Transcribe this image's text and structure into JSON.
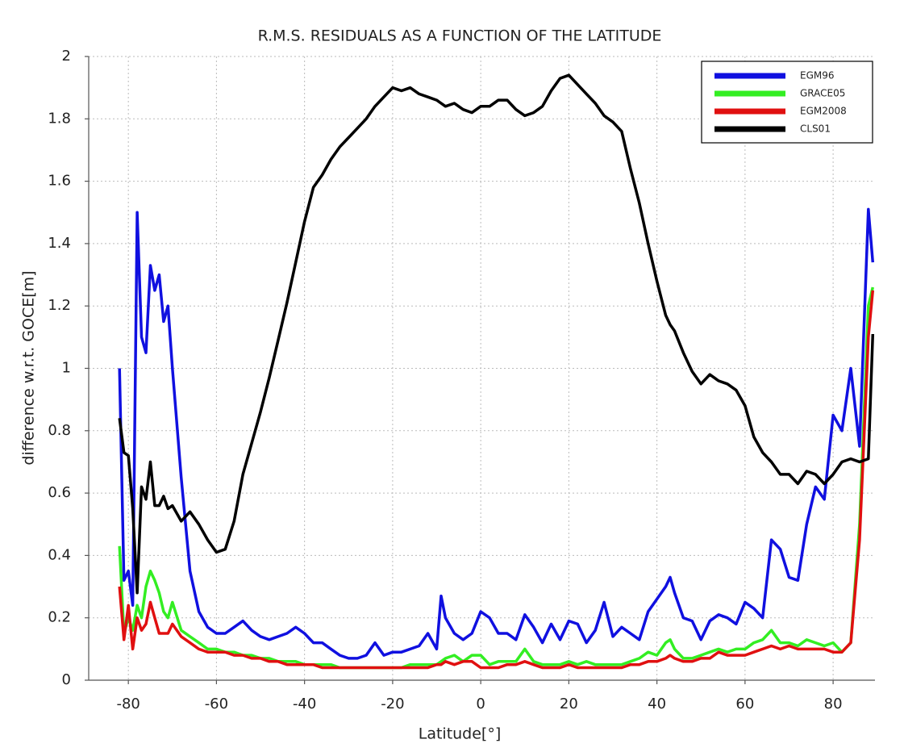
{
  "chart_data": {
    "type": "line",
    "title": "R.M.S. RESIDUALS AS A FUNCTION OF THE LATITUDE",
    "x_label": "Latitude[°]",
    "y_label": "difference w.r.t. GOCE[m]",
    "xlim": [
      -89,
      89.5
    ],
    "ylim": [
      0,
      2
    ],
    "xticks": [
      -80,
      -60,
      -40,
      -20,
      0,
      20,
      40,
      60,
      80
    ],
    "yticks": [
      0,
      0.2,
      0.4,
      0.6,
      0.8,
      1,
      1.2,
      1.4,
      1.6,
      1.8,
      2
    ],
    "grid": true,
    "legend": "upper right",
    "x": [
      -82,
      -81,
      -80,
      -79,
      -78,
      -77,
      -76,
      -75,
      -74,
      -73,
      -72,
      -71,
      -70,
      -68,
      -66,
      -64,
      -62,
      -60,
      -58,
      -56,
      -54,
      -52,
      -50,
      -48,
      -46,
      -44,
      -42,
      -40,
      -38,
      -36,
      -34,
      -32,
      -30,
      -28,
      -26,
      -24,
      -22,
      -20,
      -18,
      -16,
      -14,
      -12,
      -10,
      -9,
      -8,
      -6,
      -4,
      -2,
      0,
      2,
      4,
      6,
      8,
      10,
      12,
      14,
      16,
      18,
      20,
      22,
      24,
      26,
      28,
      30,
      32,
      34,
      36,
      38,
      40,
      42,
      43,
      44,
      46,
      48,
      50,
      52,
      54,
      56,
      58,
      60,
      62,
      64,
      66,
      68,
      70,
      72,
      74,
      76,
      78,
      80,
      82,
      84,
      86,
      88,
      89
    ],
    "series": [
      {
        "name": "EGM96",
        "color": "#1010e0",
        "values": [
          1.0,
          0.32,
          0.35,
          0.24,
          1.5,
          1.1,
          1.05,
          1.33,
          1.25,
          1.3,
          1.15,
          1.2,
          1.0,
          0.65,
          0.35,
          0.22,
          0.17,
          0.15,
          0.15,
          0.17,
          0.19,
          0.16,
          0.14,
          0.13,
          0.14,
          0.15,
          0.17,
          0.15,
          0.12,
          0.12,
          0.1,
          0.08,
          0.07,
          0.07,
          0.08,
          0.12,
          0.08,
          0.09,
          0.09,
          0.1,
          0.11,
          0.15,
          0.1,
          0.27,
          0.2,
          0.15,
          0.13,
          0.15,
          0.22,
          0.2,
          0.15,
          0.15,
          0.13,
          0.21,
          0.17,
          0.12,
          0.18,
          0.13,
          0.19,
          0.18,
          0.12,
          0.16,
          0.25,
          0.14,
          0.17,
          0.15,
          0.13,
          0.22,
          0.26,
          0.3,
          0.33,
          0.28,
          0.2,
          0.19,
          0.13,
          0.19,
          0.21,
          0.2,
          0.18,
          0.25,
          0.23,
          0.2,
          0.45,
          0.42,
          0.33,
          0.32,
          0.5,
          0.62,
          0.58,
          0.85,
          0.8,
          1.0,
          0.75,
          1.51,
          1.34
        ]
      },
      {
        "name": "GRACE05",
        "color": "#33ee22",
        "values": [
          0.43,
          0.15,
          0.2,
          0.16,
          0.24,
          0.2,
          0.3,
          0.35,
          0.32,
          0.28,
          0.22,
          0.2,
          0.25,
          0.16,
          0.14,
          0.12,
          0.1,
          0.1,
          0.09,
          0.09,
          0.08,
          0.08,
          0.07,
          0.07,
          0.06,
          0.06,
          0.06,
          0.05,
          0.05,
          0.05,
          0.05,
          0.04,
          0.04,
          0.04,
          0.04,
          0.04,
          0.04,
          0.04,
          0.04,
          0.05,
          0.05,
          0.05,
          0.05,
          0.06,
          0.07,
          0.08,
          0.06,
          0.08,
          0.08,
          0.05,
          0.06,
          0.06,
          0.06,
          0.1,
          0.06,
          0.05,
          0.05,
          0.05,
          0.06,
          0.05,
          0.06,
          0.05,
          0.05,
          0.05,
          0.05,
          0.06,
          0.07,
          0.09,
          0.08,
          0.12,
          0.13,
          0.1,
          0.07,
          0.07,
          0.08,
          0.09,
          0.1,
          0.09,
          0.1,
          0.1,
          0.12,
          0.13,
          0.16,
          0.12,
          0.12,
          0.11,
          0.13,
          0.12,
          0.11,
          0.12,
          0.09,
          0.12,
          0.5,
          1.2,
          1.26
        ]
      },
      {
        "name": "EGM2008",
        "color": "#e01010",
        "values": [
          0.3,
          0.13,
          0.24,
          0.1,
          0.2,
          0.16,
          0.18,
          0.25,
          0.2,
          0.15,
          0.15,
          0.15,
          0.18,
          0.14,
          0.12,
          0.1,
          0.09,
          0.09,
          0.09,
          0.08,
          0.08,
          0.07,
          0.07,
          0.06,
          0.06,
          0.05,
          0.05,
          0.05,
          0.05,
          0.04,
          0.04,
          0.04,
          0.04,
          0.04,
          0.04,
          0.04,
          0.04,
          0.04,
          0.04,
          0.04,
          0.04,
          0.04,
          0.05,
          0.05,
          0.06,
          0.05,
          0.06,
          0.06,
          0.04,
          0.04,
          0.04,
          0.05,
          0.05,
          0.06,
          0.05,
          0.04,
          0.04,
          0.04,
          0.05,
          0.04,
          0.04,
          0.04,
          0.04,
          0.04,
          0.04,
          0.05,
          0.05,
          0.06,
          0.06,
          0.07,
          0.08,
          0.07,
          0.06,
          0.06,
          0.07,
          0.07,
          0.09,
          0.08,
          0.08,
          0.08,
          0.09,
          0.1,
          0.11,
          0.1,
          0.11,
          0.1,
          0.1,
          0.1,
          0.1,
          0.09,
          0.09,
          0.12,
          0.45,
          1.1,
          1.25
        ]
      },
      {
        "name": "CLS01",
        "color": "#000000",
        "values": [
          0.84,
          0.73,
          0.72,
          0.55,
          0.28,
          0.62,
          0.58,
          0.7,
          0.56,
          0.56,
          0.59,
          0.55,
          0.56,
          0.51,
          0.54,
          0.5,
          0.45,
          0.41,
          0.42,
          0.51,
          0.66,
          0.76,
          0.86,
          0.97,
          1.09,
          1.21,
          1.34,
          1.47,
          1.58,
          1.62,
          1.67,
          1.71,
          1.74,
          1.77,
          1.8,
          1.84,
          1.87,
          1.9,
          1.89,
          1.9,
          1.88,
          1.87,
          1.86,
          1.85,
          1.84,
          1.85,
          1.83,
          1.82,
          1.84,
          1.84,
          1.86,
          1.86,
          1.83,
          1.81,
          1.82,
          1.84,
          1.89,
          1.93,
          1.94,
          1.91,
          1.88,
          1.85,
          1.81,
          1.79,
          1.76,
          1.64,
          1.53,
          1.4,
          1.28,
          1.17,
          1.14,
          1.12,
          1.05,
          0.99,
          0.95,
          0.98,
          0.96,
          0.95,
          0.93,
          0.88,
          0.78,
          0.73,
          0.7,
          0.66,
          0.66,
          0.63,
          0.67,
          0.66,
          0.63,
          0.66,
          0.7,
          0.71,
          0.7,
          0.71,
          1.11
        ]
      }
    ]
  }
}
